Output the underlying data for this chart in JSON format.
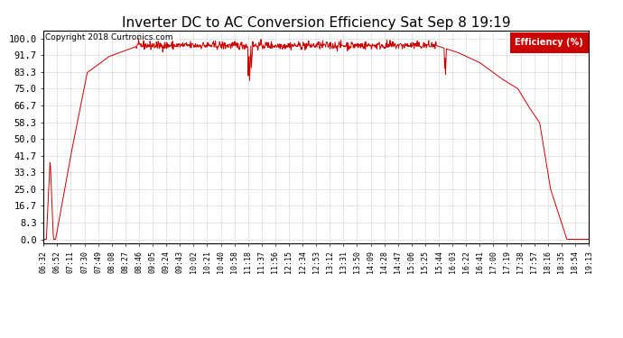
{
  "title": "Inverter DC to AC Conversion Efficiency Sat Sep 8 19:19",
  "copyright": "Copyright 2018 Curtronics.com",
  "legend_label": "Efficiency (%)",
  "legend_bg": "#cc0000",
  "legend_fg": "#ffffff",
  "line_color": "#cc0000",
  "bg_color": "#ffffff",
  "plot_bg": "#ffffff",
  "grid_color": "#b0b0b0",
  "yticks": [
    0.0,
    8.3,
    16.7,
    25.0,
    33.3,
    41.7,
    50.0,
    58.3,
    66.7,
    75.0,
    83.3,
    91.7,
    100.0
  ],
  "ylim": [
    -2,
    104
  ],
  "title_fontsize": 11,
  "xlabel_fontsize": 6,
  "ylabel_fontsize": 7.5,
  "xtick_labels": [
    "06:32",
    "06:52",
    "07:11",
    "07:30",
    "07:49",
    "08:08",
    "08:27",
    "08:46",
    "09:05",
    "09:24",
    "09:43",
    "10:02",
    "10:21",
    "10:40",
    "10:58",
    "11:18",
    "11:37",
    "11:56",
    "12:15",
    "12:34",
    "12:53",
    "13:12",
    "13:31",
    "13:50",
    "14:09",
    "14:28",
    "14:47",
    "15:06",
    "15:25",
    "15:44",
    "16:03",
    "16:22",
    "16:41",
    "17:00",
    "17:19",
    "17:38",
    "17:57",
    "18:16",
    "18:35",
    "18:54",
    "19:13"
  ],
  "n_points": 1200,
  "noise_std": 1.0
}
